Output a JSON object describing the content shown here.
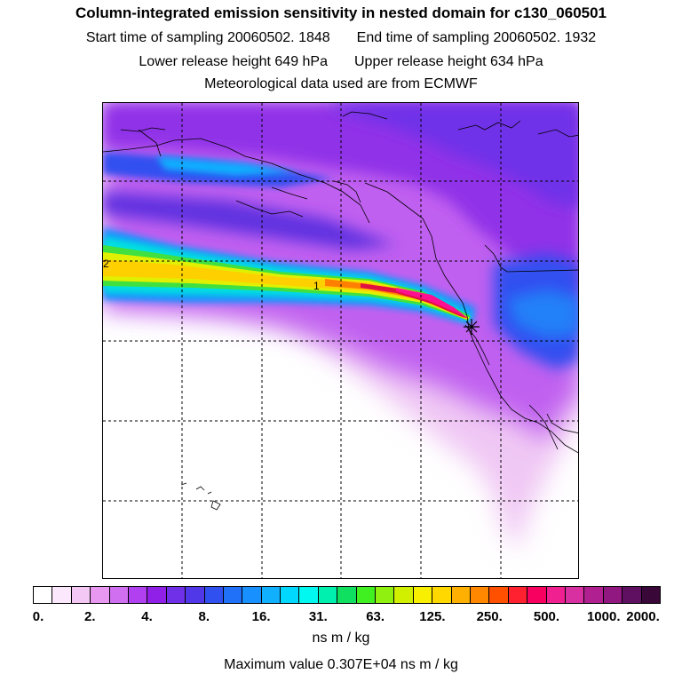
{
  "header": {
    "title": "Column-integrated emission sensitivity in nested domain for c130_060501",
    "start_label": "Start time of sampling 20060502.  1848",
    "end_label": "End time of sampling 20060502.  1932",
    "lower_label": "Lower release height  649 hPa",
    "upper_label": "Upper release height  634 hPa",
    "met_label": "Meteorological data used are from ECMWF"
  },
  "map": {
    "labels": {
      "label_1": "1",
      "label_2": "2"
    },
    "release_marker": "release-point-icon",
    "plume_colors": [
      "#e8b8f0",
      "#b040f0",
      "#6030e0",
      "#1e90ff",
      "#00e0e0",
      "#40e040",
      "#e0f000",
      "#ffd000",
      "#ff8000",
      "#e01040",
      "#ff1090"
    ]
  },
  "colorbar": {
    "colors": [
      "#ffffff",
      "#fce8fc",
      "#f4c8f4",
      "#e898f0",
      "#d070f0",
      "#b040f0",
      "#9020e8",
      "#7030e8",
      "#5038e8",
      "#3050f0",
      "#2070f8",
      "#1890ff",
      "#10b0ff",
      "#00d8ff",
      "#00f8f0",
      "#00f0b0",
      "#10e060",
      "#40f020",
      "#90f010",
      "#d0f000",
      "#f8f000",
      "#ffd800",
      "#ffb000",
      "#ff8800",
      "#ff5000",
      "#ff2030",
      "#f80060",
      "#f02090",
      "#d830a0",
      "#b02090",
      "#901880",
      "#601060",
      "#3a0838"
    ],
    "tick_labels": [
      "0.",
      "2.",
      "4.",
      "8.",
      "16.",
      "31.",
      "63.",
      "125.",
      "250.",
      "500.",
      "1000.",
      "2000."
    ],
    "units": "ns m / kg",
    "max_value": "Maximum value  0.307E+04 ns m / kg"
  }
}
